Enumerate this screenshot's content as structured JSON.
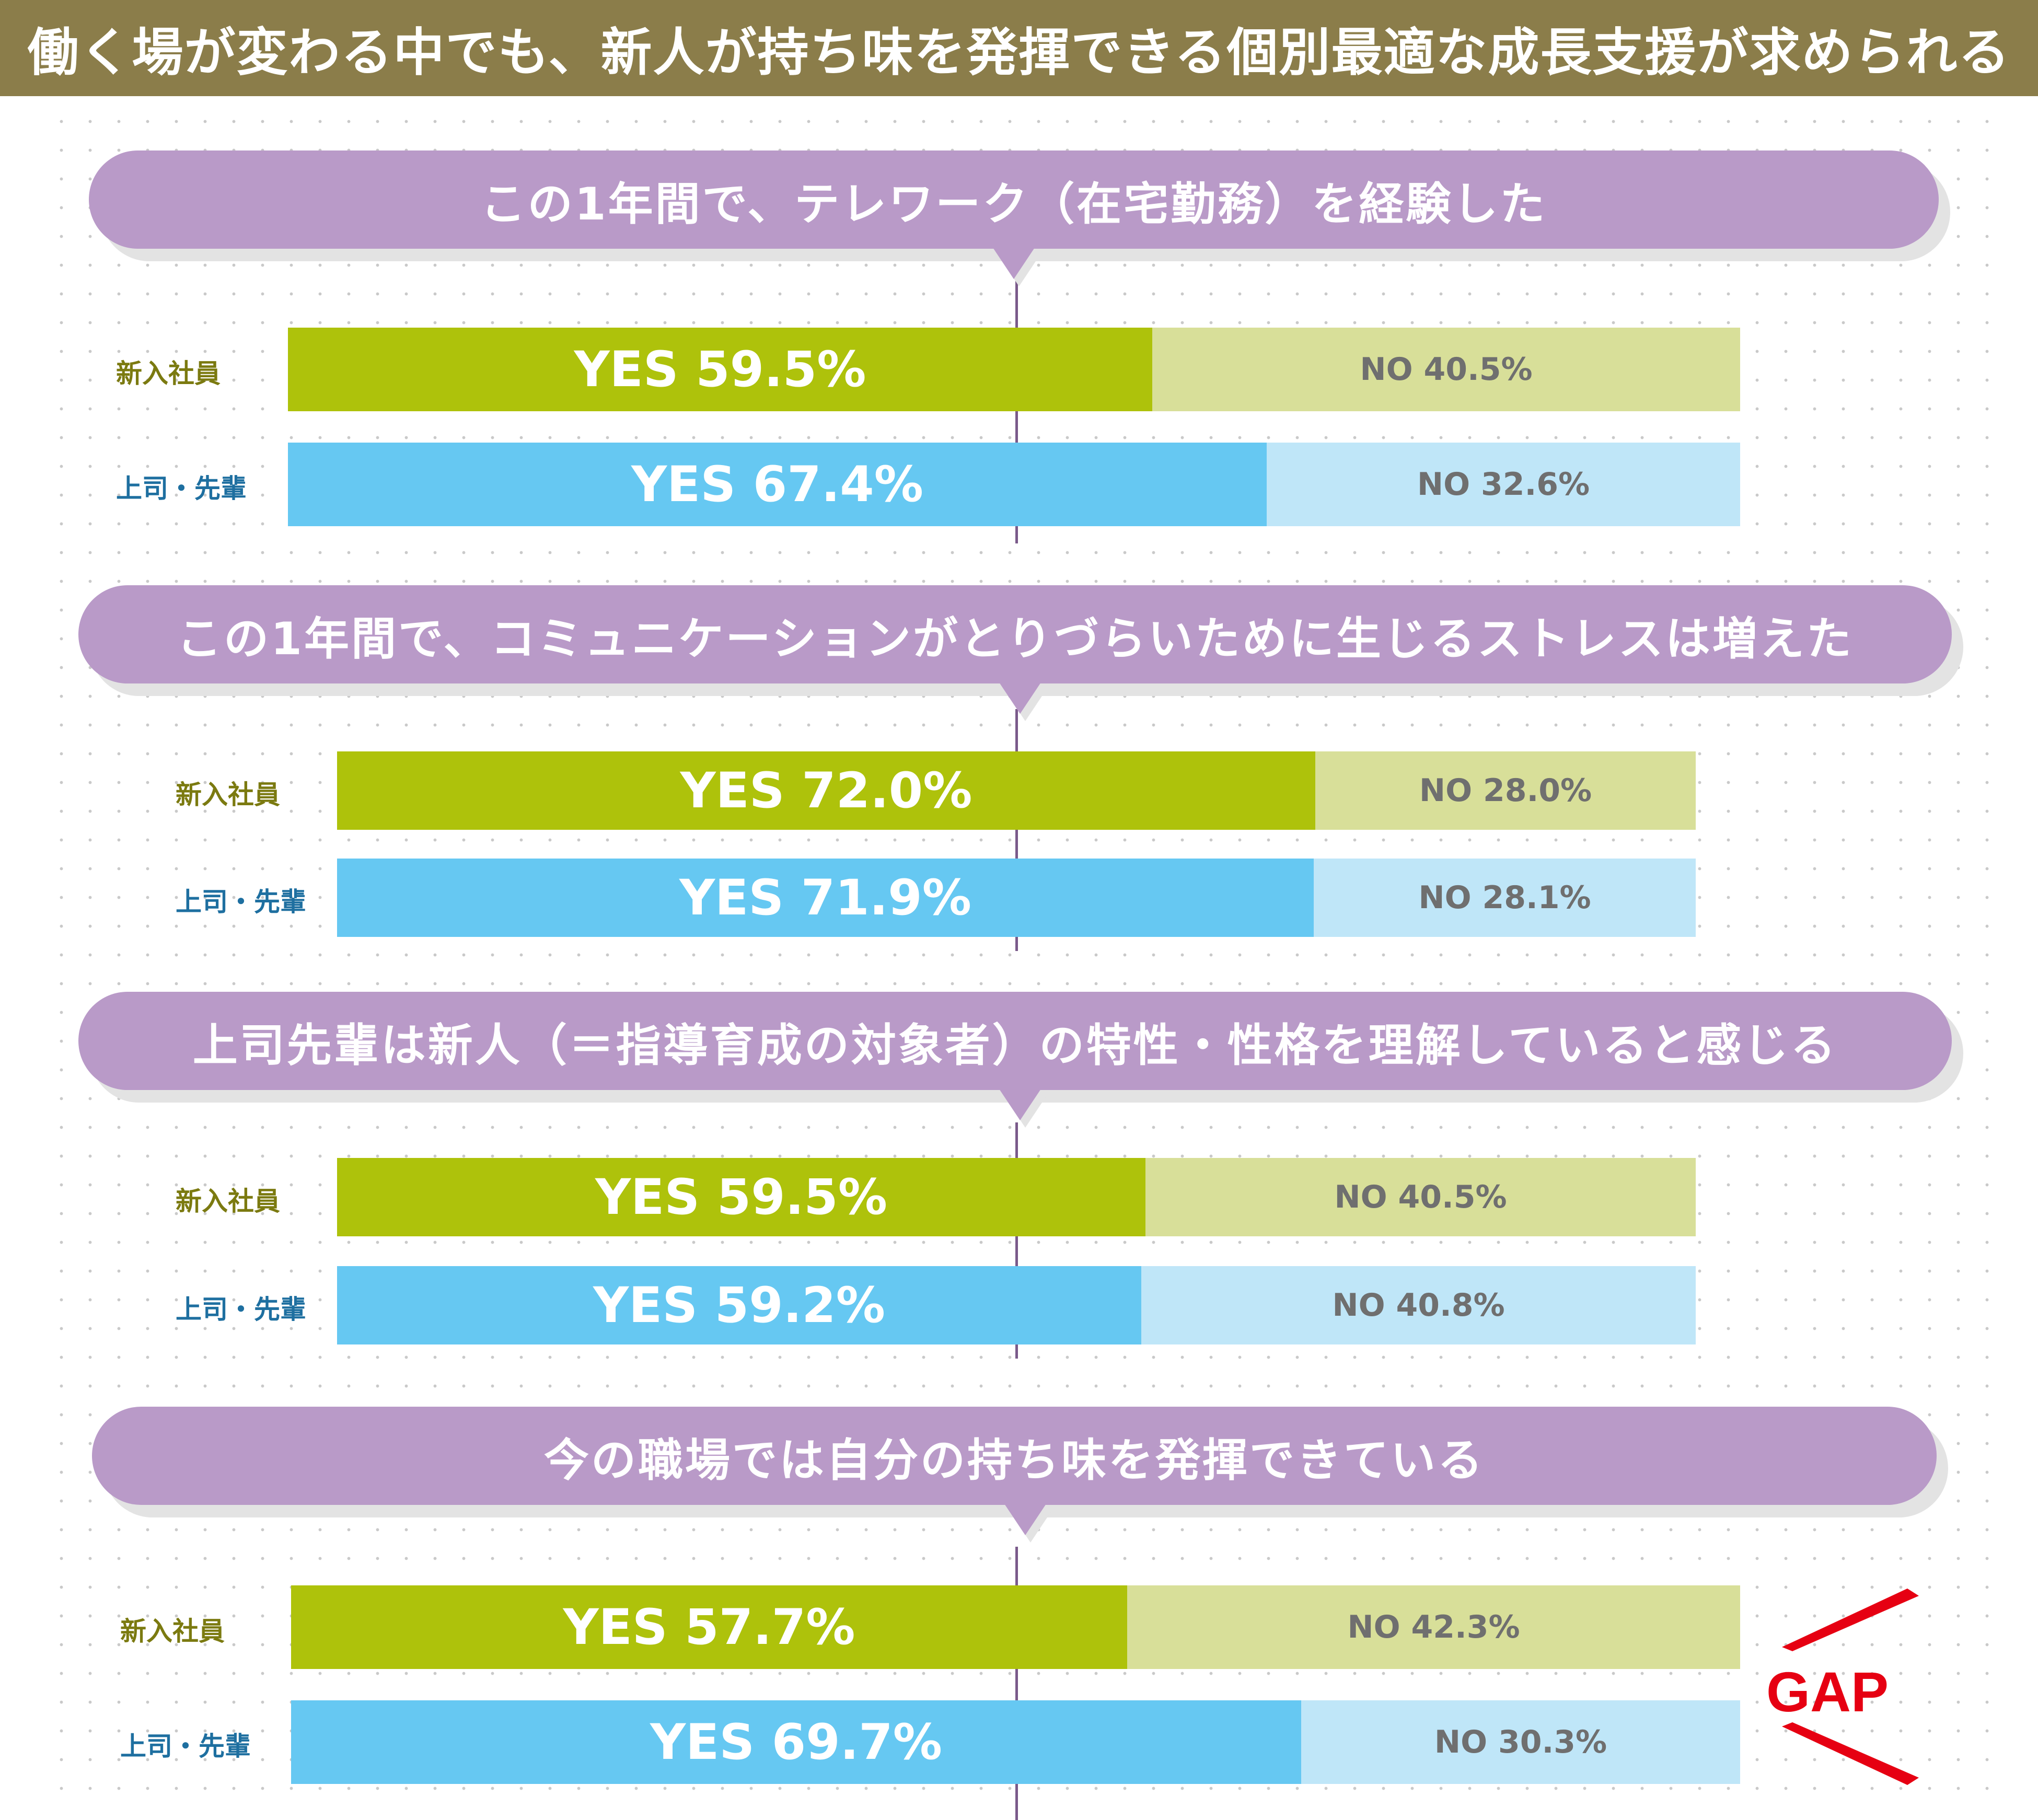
{
  "title": "働く場が変わる中でも、新人が持ち味を発揮できる個別最適な成長支援が求められる",
  "colors": {
    "title_bg": "#8b7d4a",
    "question_bg": "#b99ac8",
    "newcomer_yes": "#aec20b",
    "newcomer_no": "#d8df99",
    "senior_yes": "#66c8f2",
    "senior_no": "#bfe6f8",
    "newcomer_label": "#7b7a10",
    "senior_label": "#1e6fa0",
    "gap": "#e60012"
  },
  "gap_label": "GAP",
  "chart_data": [
    {
      "type": "bar",
      "orientation": "horizontal-stacked-100",
      "title": "この1年間で、テレワーク（在宅勤務）を経験した",
      "categories": [
        "新入社員",
        "上司・先輩"
      ],
      "series": [
        {
          "name": "YES",
          "values": [
            59.5,
            67.4
          ]
        },
        {
          "name": "NO",
          "values": [
            40.5,
            32.6
          ]
        }
      ],
      "unit": "%"
    },
    {
      "type": "bar",
      "orientation": "horizontal-stacked-100",
      "title": "この1年間で、コミュニケーションがとりづらいために生じるストレスは増えた",
      "categories": [
        "新入社員",
        "上司・先輩"
      ],
      "series": [
        {
          "name": "YES",
          "values": [
            72.0,
            71.9
          ]
        },
        {
          "name": "NO",
          "values": [
            28.0,
            28.1
          ]
        }
      ],
      "unit": "%"
    },
    {
      "type": "bar",
      "orientation": "horizontal-stacked-100",
      "title": "上司先輩は新人（＝指導育成の対象者）の特性・性格を理解していると感じる",
      "categories": [
        "新入社員",
        "上司・先輩"
      ],
      "series": [
        {
          "name": "YES",
          "values": [
            59.5,
            59.2
          ]
        },
        {
          "name": "NO",
          "values": [
            40.5,
            40.8
          ]
        }
      ],
      "unit": "%"
    },
    {
      "type": "bar",
      "orientation": "horizontal-stacked-100",
      "title": "今の職場では自分の持ち味を発揮できている",
      "categories": [
        "新入社員",
        "上司・先輩"
      ],
      "series": [
        {
          "name": "YES",
          "values": [
            57.7,
            69.7
          ]
        },
        {
          "name": "NO",
          "values": [
            42.3,
            30.3
          ]
        }
      ],
      "unit": "%"
    }
  ]
}
